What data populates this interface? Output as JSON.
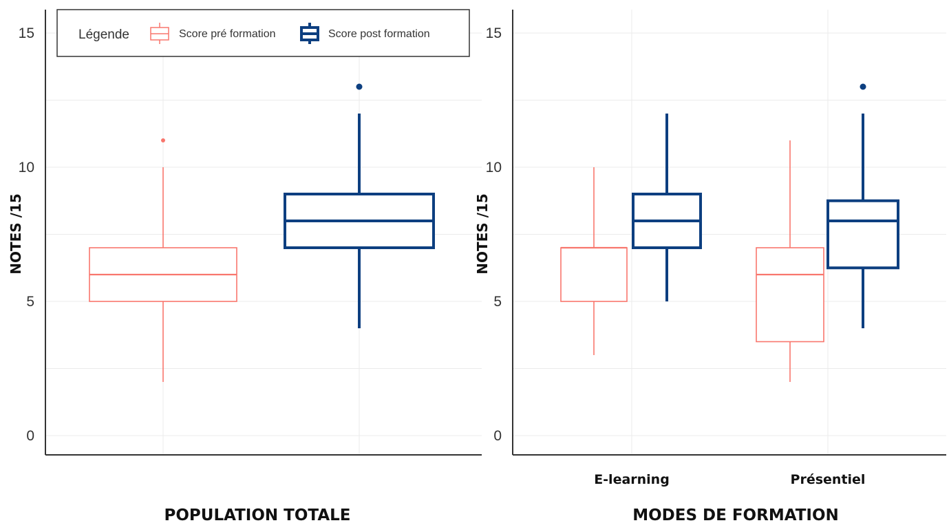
{
  "legend": {
    "title": "Légende",
    "items": [
      {
        "label": "Score pré formation",
        "color": "#F8766D"
      },
      {
        "label": "Score post formation",
        "color": "#0D3F80"
      }
    ]
  },
  "chart_data": [
    {
      "type": "boxplot",
      "title": "",
      "xlabel": "POPULATION TOTALE",
      "ylabel": "NOTES /15",
      "ylim": [
        0,
        15
      ],
      "yticks": [
        0,
        5,
        10,
        15
      ],
      "grid": true,
      "legend_position": "top",
      "categories": [
        ""
      ],
      "series": [
        {
          "name": "Score pré formation",
          "color": "#F8766D",
          "boxes": [
            {
              "min": 2,
              "q1": 5,
              "median": 6,
              "q3": 7,
              "max": 10,
              "outliers": [
                11
              ]
            }
          ]
        },
        {
          "name": "Score post formation",
          "color": "#0D3F80",
          "boxes": [
            {
              "min": 4,
              "q1": 7,
              "median": 8,
              "q3": 9,
              "max": 12,
              "outliers": [
                13
              ]
            }
          ]
        }
      ]
    },
    {
      "type": "boxplot",
      "title": "",
      "xlabel": "MODES DE FORMATION",
      "ylabel": "NOTES /15",
      "ylim": [
        0,
        15
      ],
      "yticks": [
        0,
        5,
        10,
        15
      ],
      "grid": true,
      "categories": [
        "E-learning",
        "Présentiel"
      ],
      "series": [
        {
          "name": "Score pré formation",
          "color": "#F8766D",
          "boxes": [
            {
              "min": 3,
              "q1": 5,
              "median": 7,
              "q3": 7,
              "max": 10,
              "outliers": []
            },
            {
              "min": 2,
              "q1": 3.5,
              "median": 6,
              "q3": 7,
              "max": 11,
              "outliers": []
            }
          ]
        },
        {
          "name": "Score post formation",
          "color": "#0D3F80",
          "boxes": [
            {
              "min": 5,
              "q1": 7,
              "median": 8,
              "q3": 9,
              "max": 12,
              "outliers": []
            },
            {
              "min": 4,
              "q1": 6.25,
              "median": 8,
              "q3": 8.75,
              "max": 12,
              "outliers": [
                13
              ]
            }
          ]
        }
      ]
    }
  ]
}
